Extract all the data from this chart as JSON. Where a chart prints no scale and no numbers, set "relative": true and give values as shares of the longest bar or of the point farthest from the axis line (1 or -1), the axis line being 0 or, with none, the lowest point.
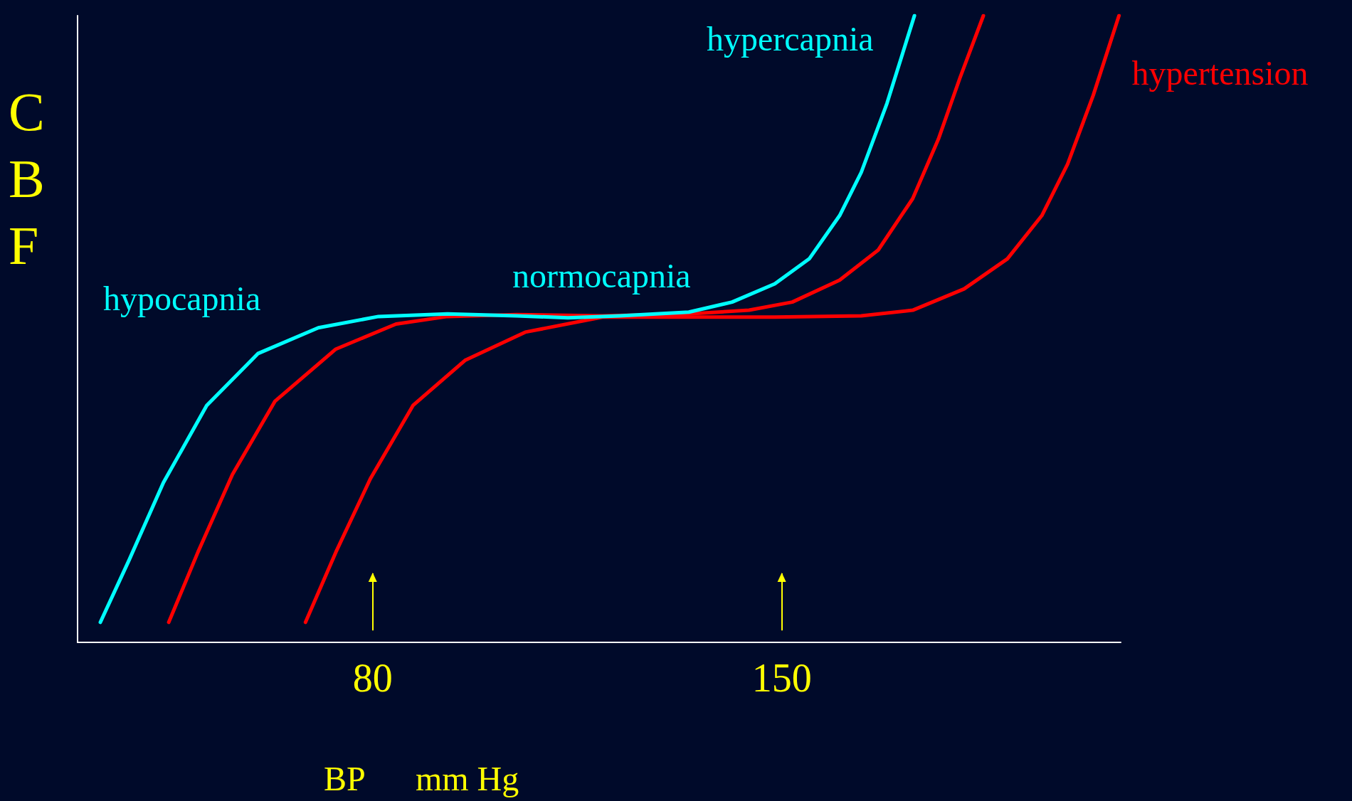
{
  "chart_data": {
    "type": "line",
    "relative": true,
    "xlabel": "BP mm Hg",
    "ylabel": "CBF",
    "xlim": [
      29.5,
      208
    ],
    "xticks": [
      80,
      150
    ],
    "grid": false,
    "legend": false,
    "marker": "none",
    "line_style": "solid",
    "series": [
      {
        "color": "#00ffff",
        "x": [
          33.4,
          38.3,
          44.2,
          51.6,
          60.4,
          70.7,
          81.0,
          92.8,
          104.6,
          113.4,
          122.3,
          134.1,
          141.5,
          148.8,
          154.7,
          159.9,
          163.6,
          168.0,
          172.7
        ],
        "values": [
          0.032,
          0.131,
          0.255,
          0.378,
          0.461,
          0.502,
          0.52,
          0.524,
          0.521,
          0.518,
          0.521,
          0.527,
          0.543,
          0.572,
          0.612,
          0.681,
          0.75,
          0.86,
          1.0
        ]
      },
      {
        "color": "#ff0000",
        "x": [
          45.1,
          50.1,
          56.0,
          63.3,
          73.7,
          84.0,
          92.8,
          104.6,
          119.3,
          134.1,
          144.4,
          151.8,
          159.9,
          166.5,
          172.4,
          176.8,
          180.5,
          184.5
        ],
        "values": [
          0.032,
          0.144,
          0.268,
          0.385,
          0.468,
          0.508,
          0.52,
          0.523,
          0.521,
          0.524,
          0.53,
          0.543,
          0.578,
          0.626,
          0.708,
          0.803,
          0.901,
          1.0
        ]
      },
      {
        "name": "hypertension",
        "color": "#ff0000",
        "x": [
          68.5,
          73.7,
          79.6,
          86.9,
          95.8,
          106.1,
          119.3,
          134.1,
          148.8,
          163.6,
          172.4,
          181.2,
          188.6,
          194.5,
          198.9,
          203.3,
          207.7
        ],
        "values": [
          0.032,
          0.144,
          0.261,
          0.378,
          0.45,
          0.495,
          0.519,
          0.519,
          0.519,
          0.521,
          0.53,
          0.564,
          0.612,
          0.681,
          0.763,
          0.873,
          1.0
        ]
      }
    ],
    "annotations": [
      "hypocapnia",
      "hypercapnia",
      "normocapnia"
    ],
    "ref_lines": [
      {
        "axis": "x",
        "value": 80,
        "color": "#ffff00"
      },
      {
        "axis": "x",
        "value": 150,
        "color": "#ffff00"
      }
    ]
  }
}
